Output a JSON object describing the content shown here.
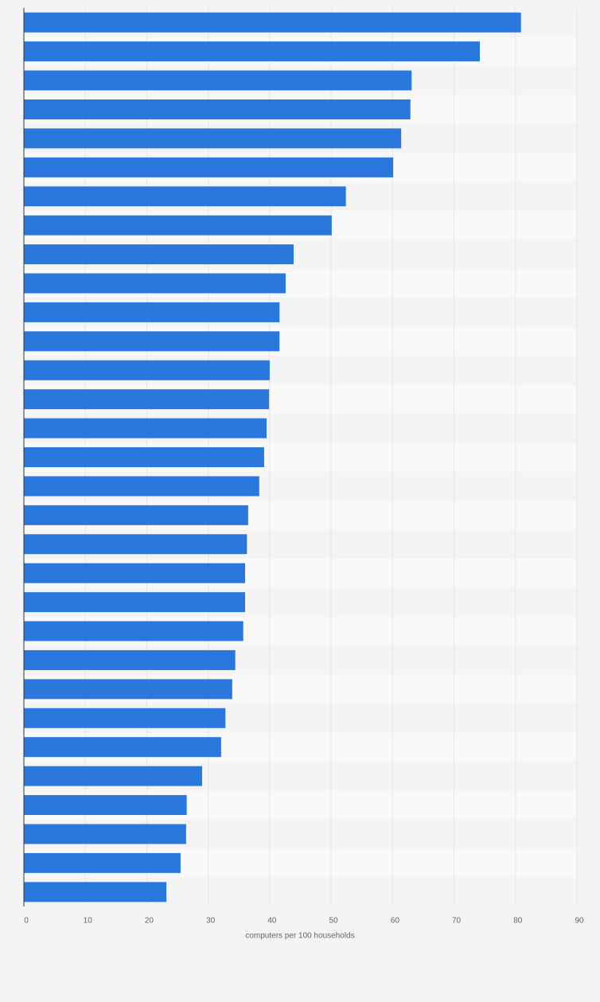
{
  "chart_data": {
    "type": "bar",
    "orientation": "horizontal",
    "xlabel": "computers per 100 households",
    "categories": [
      null,
      null,
      null,
      null,
      null,
      null,
      null,
      null,
      null,
      null,
      null,
      null,
      null,
      null,
      null,
      null,
      null,
      null,
      null,
      null,
      null,
      null,
      null,
      null,
      null,
      null,
      null,
      null,
      null,
      null,
      null
    ],
    "values": [
      80.9,
      74.2,
      63.1,
      62.9,
      61.4,
      60.1,
      52.4,
      50.1,
      43.9,
      42.6,
      41.6,
      41.6,
      40.0,
      39.9,
      39.5,
      39.1,
      38.3,
      36.5,
      36.3,
      36.0,
      36.0,
      35.7,
      34.4,
      33.9,
      32.8,
      32.1,
      29.0,
      26.5,
      26.4,
      25.5,
      23.2
    ],
    "color": "#2a77de",
    "xlim": [
      0,
      90
    ],
    "xticks": [
      0,
      10,
      20,
      30,
      40,
      50,
      60,
      70,
      80,
      90
    ],
    "grid": true
  }
}
